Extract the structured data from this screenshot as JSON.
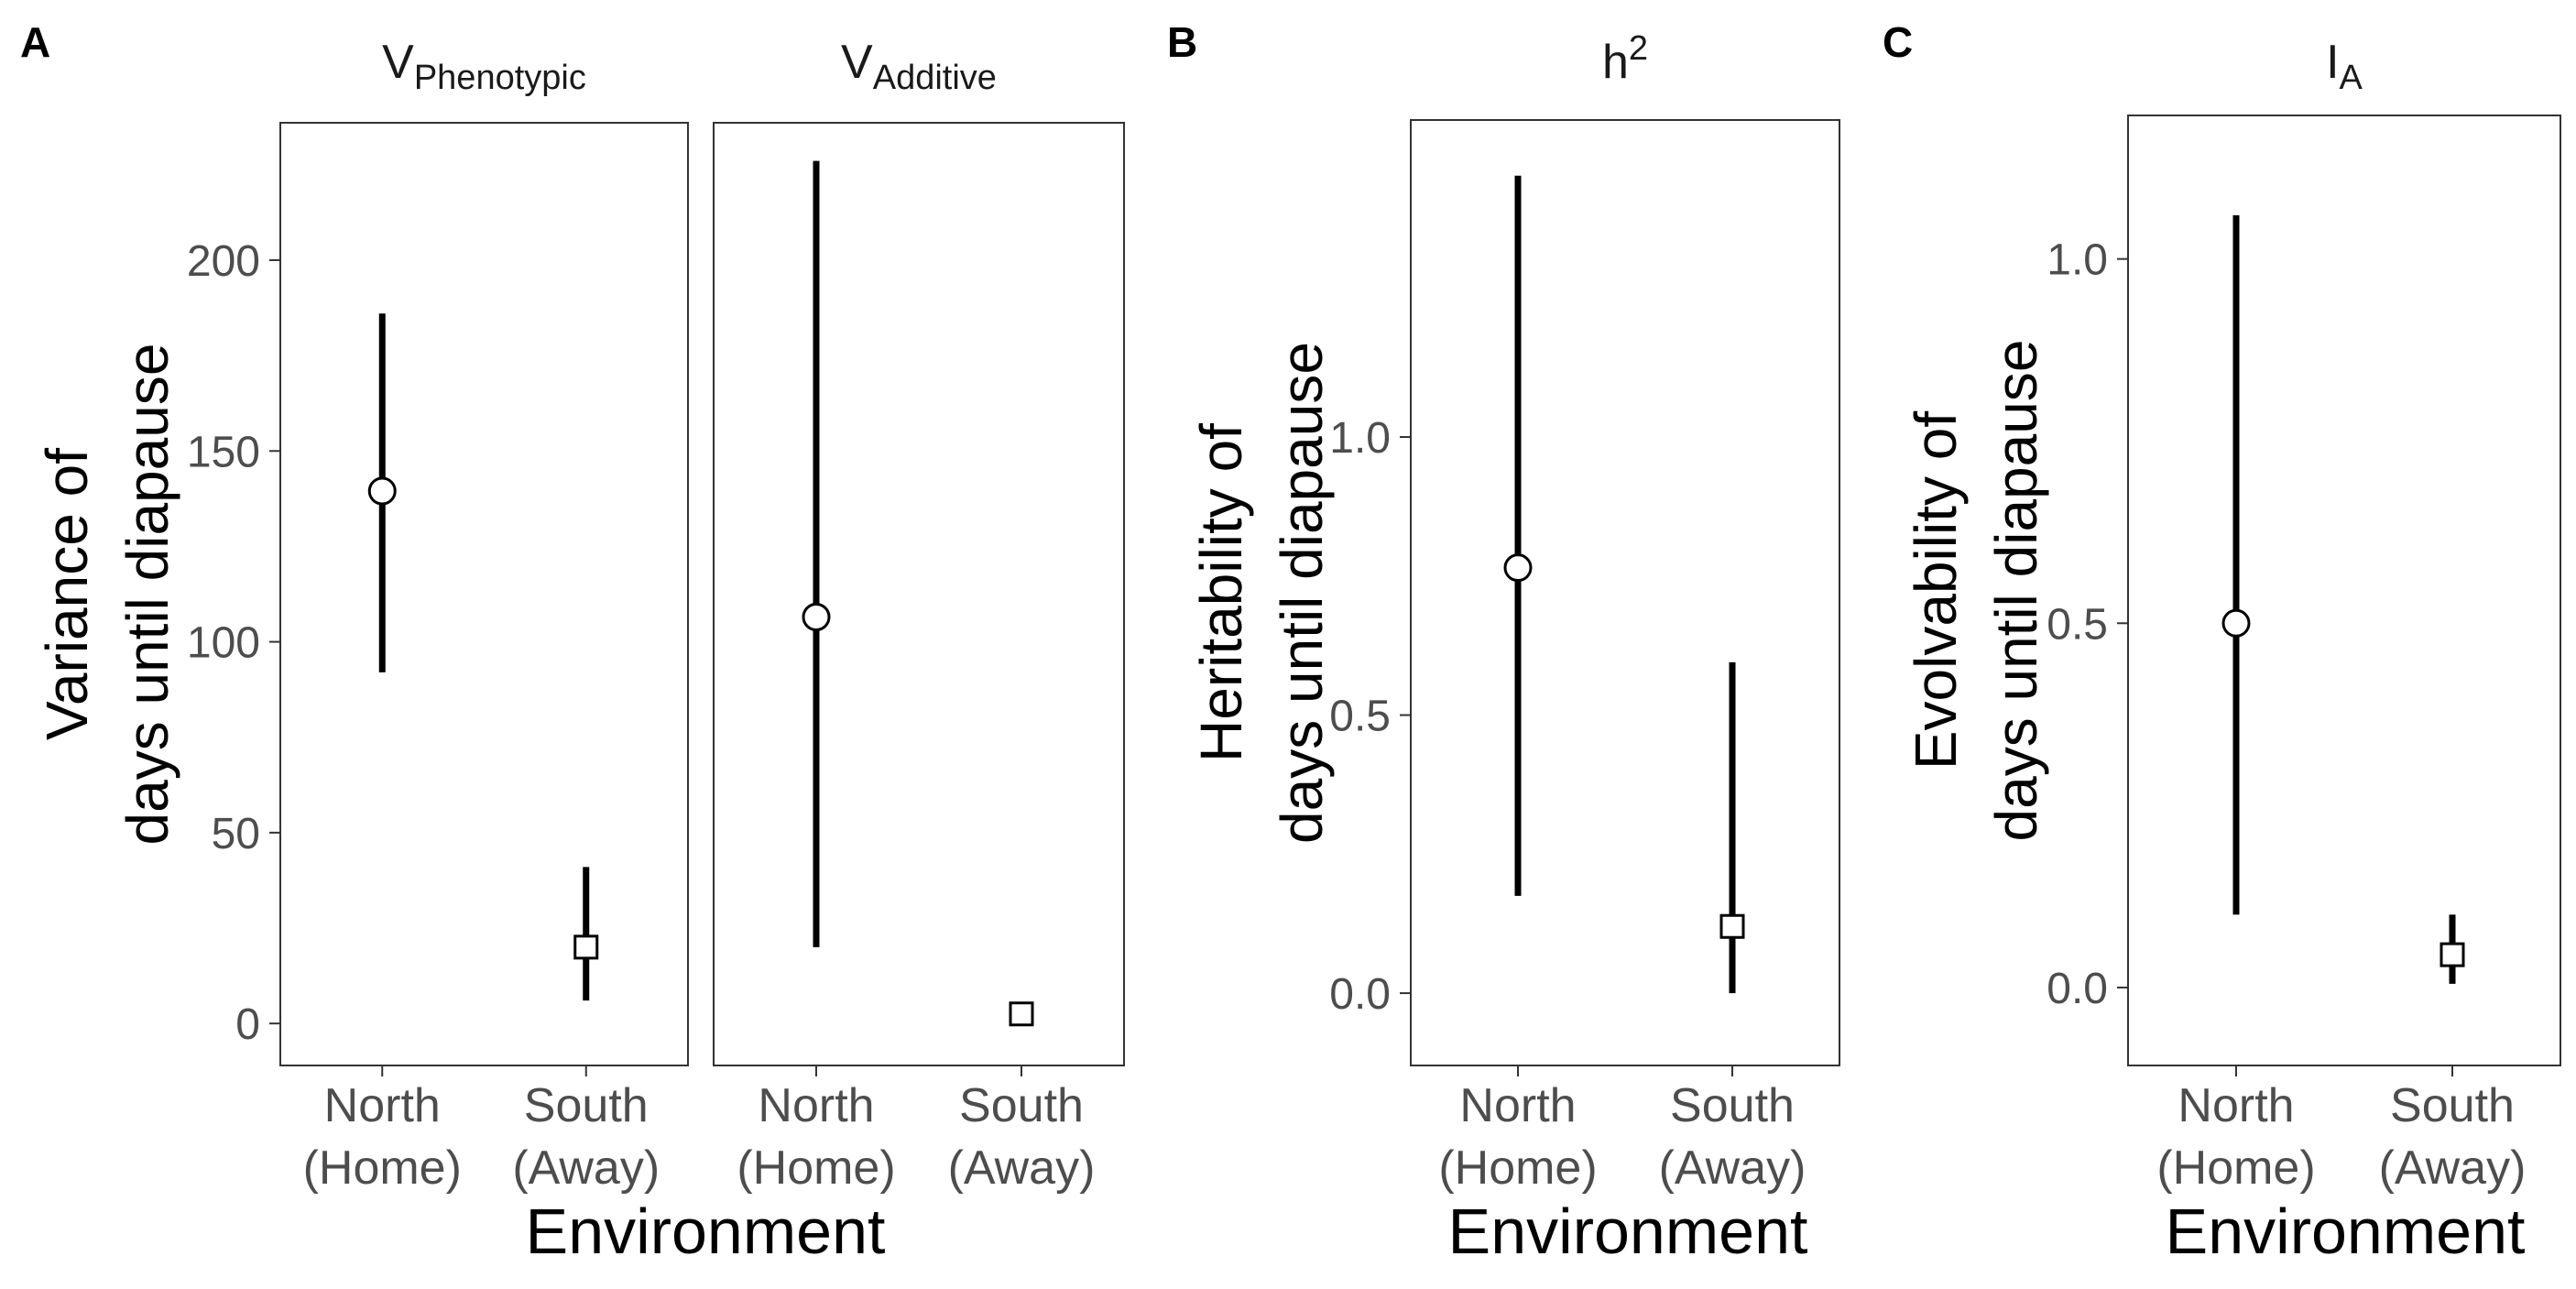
{
  "chart_data": [
    {
      "panel_label": "A",
      "type": "scatter",
      "ylabel_lines": [
        "Variance of",
        "days until diapause"
      ],
      "xlabel": "Environment",
      "ylim": [
        -11,
        236
      ],
      "yticks": [
        0,
        50,
        100,
        150,
        200
      ],
      "ytick_labels": [
        "0",
        "50",
        "100",
        "150",
        "200"
      ],
      "grid": false,
      "facets": [
        {
          "title": {
            "main": "V",
            "sub": "Phenotypic"
          },
          "categories": [
            {
              "line1": "North",
              "line2": "(Home)"
            },
            {
              "line1": "South",
              "line2": "(Away)"
            }
          ],
          "points": [
            {
              "y": 139.5,
              "lower": 92,
              "upper": 186,
              "marker": "circle"
            },
            {
              "y": 20,
              "lower": 6,
              "upper": 41,
              "marker": "square"
            }
          ]
        },
        {
          "title": {
            "main": "V",
            "sub": "Additive"
          },
          "categories": [
            {
              "line1": "North",
              "line2": "(Home)"
            },
            {
              "line1": "South",
              "line2": "(Away)"
            }
          ],
          "points": [
            {
              "y": 106.5,
              "lower": 20,
              "upper": 226,
              "marker": "circle"
            },
            {
              "y": 2.5,
              "lower": 2.5,
              "upper": 2.5,
              "marker": "square"
            }
          ]
        }
      ]
    },
    {
      "panel_label": "B",
      "type": "scatter",
      "ylabel_lines": [
        "Heritability of",
        "days until diapause"
      ],
      "xlabel": "Environment",
      "ylim": [
        -0.13,
        1.57
      ],
      "yticks": [
        0.0,
        0.5,
        1.0
      ],
      "ytick_labels": [
        "0.0",
        "0.5",
        "1.0"
      ],
      "grid": false,
      "facets": [
        {
          "title": {
            "main": "h",
            "sup": "2"
          },
          "categories": [
            {
              "line1": "North",
              "line2": "(Home)"
            },
            {
              "line1": "South",
              "line2": "(Away)"
            }
          ],
          "points": [
            {
              "y": 0.765,
              "lower": 0.175,
              "upper": 1.47,
              "marker": "circle"
            },
            {
              "y": 0.12,
              "lower": 0.0,
              "upper": 0.595,
              "marker": "square"
            }
          ]
        }
      ]
    },
    {
      "panel_label": "C",
      "type": "scatter",
      "ylabel_lines": [
        "Evolvability of",
        "days until diapause"
      ],
      "xlabel": "Environment",
      "ylim": [
        -0.107,
        1.197
      ],
      "yticks": [
        0.0,
        0.5,
        1.0
      ],
      "ytick_labels": [
        "0.0",
        "0.5",
        "1.0"
      ],
      "grid": false,
      "facets": [
        {
          "title": {
            "main": "I",
            "sub": "A"
          },
          "categories": [
            {
              "line1": "North",
              "line2": "(Home)"
            },
            {
              "line1": "South",
              "line2": "(Away)"
            }
          ],
          "points": [
            {
              "y": 0.5,
              "lower": 0.1,
              "upper": 1.06,
              "marker": "circle"
            },
            {
              "y": 0.045,
              "lower": 0.005,
              "upper": 0.1,
              "marker": "square"
            }
          ]
        }
      ]
    }
  ]
}
